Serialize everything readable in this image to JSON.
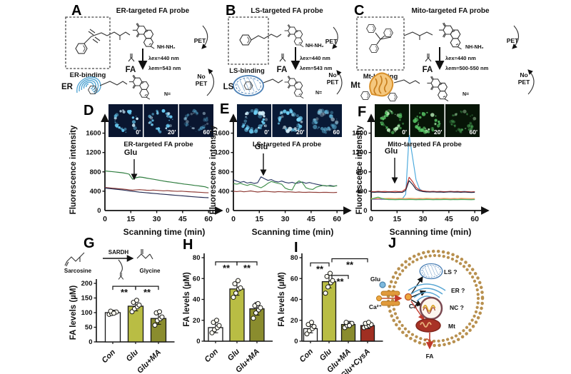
{
  "panels": {
    "A": {
      "label": "A",
      "title": "ER-targeted FA probe",
      "binding": "ER-binding",
      "organelle": "ER",
      "fa": "FA",
      "ex": "λex=440 nm",
      "em": "λem=543 nm",
      "pet": "PET",
      "no": "No",
      "pet2": "PET",
      "hydrazine": "NH-NH₂",
      "hydrazone": "N="
    },
    "B": {
      "label": "B",
      "title": "LS-targeted FA probe",
      "binding": "LS-binding",
      "organelle": "LS",
      "fa": "FA",
      "ex": "λex=440 nm",
      "em": "λem=543 nm",
      "pet": "PET",
      "no": "No",
      "pet2": "PET",
      "hydrazine": "NH-NH₂",
      "hydrazone": "N="
    },
    "C": {
      "label": "C",
      "title": "Mito-targeted FA probe",
      "binding": "Mt-binding",
      "organelle": "Mt",
      "fa": "FA",
      "ex": "λex=440 nm",
      "em": "λem=500-550 nm",
      "pet": "PET",
      "no": "No",
      "pet2": "PET",
      "hydrazine": "NH-NH₂",
      "hydrazone": "N="
    },
    "D": {
      "label": "D"
    },
    "E": {
      "label": "E"
    },
    "F": {
      "label": "F"
    },
    "G": {
      "label": "G",
      "scheme": {
        "substrate": "Sarcosine",
        "enzyme": "SARDH",
        "product": "Glycine"
      }
    },
    "H": {
      "label": "H"
    },
    "I": {
      "label": "I"
    },
    "J": {
      "label": "J",
      "glu": "Glu",
      "ca_out": "Ca²⁺",
      "ca_in": "Ca²⁺",
      "organelles": {
        "ls": "LS ?",
        "er": "ER ?",
        "nc": "NC ?",
        "mt": "Mt"
      },
      "fa": "FA"
    }
  },
  "chart_data": [
    {
      "id": "D",
      "type": "line",
      "title": "ER-targeted FA probe",
      "glu_label": "Glu",
      "glu_time": 17,
      "timepoints": [
        "0'",
        "20'",
        "60'"
      ],
      "xlabel": "Scanning time (min)",
      "ylabel": "Fluorescence intensity",
      "xlim": [
        0,
        62
      ],
      "ylim": [
        0,
        1800
      ],
      "yticks": [
        0,
        400,
        800,
        1200,
        1600
      ],
      "xticks": [
        0,
        15,
        30,
        45,
        60
      ],
      "series": [
        {
          "name": "green",
          "color": "#2f7d3f",
          "dx": 2,
          "y": [
            820,
            812,
            805,
            798,
            790,
            782,
            770,
            752,
            648,
            678,
            694,
            686,
            672,
            660,
            648,
            636,
            622,
            610,
            598,
            588,
            578,
            568,
            558,
            548,
            540,
            530,
            520,
            512,
            502,
            492,
            466
          ]
        },
        {
          "name": "dark-red",
          "color": "#8e3a34",
          "dx": 2,
          "y": [
            478,
            470,
            464,
            458,
            452,
            446,
            438,
            430,
            420,
            427,
            433,
            427,
            421,
            417,
            423,
            417,
            411,
            407,
            411,
            405,
            401,
            397,
            401,
            395,
            391,
            387,
            383,
            379,
            375,
            371,
            367
          ]
        },
        {
          "name": "navy",
          "color": "#232a52",
          "dx": 2,
          "y": [
            466,
            457,
            449,
            443,
            435,
            427,
            417,
            407,
            397,
            389,
            381,
            375,
            367,
            361,
            355,
            349,
            343,
            337,
            331,
            325,
            319,
            313,
            307,
            301,
            295,
            289,
            283,
            277,
            273,
            269,
            265
          ]
        }
      ]
    },
    {
      "id": "E",
      "type": "line",
      "title": "LS-targeted FA probe",
      "glu_label": "Glu",
      "glu_time": 17,
      "timepoints": [
        "0'",
        "20'",
        "60"
      ],
      "xlabel": "Scanning time (min)",
      "ylabel": "Fluorescence intensity",
      "xlim": [
        0,
        62
      ],
      "ylim": [
        0,
        1800
      ],
      "yticks": [
        0,
        400,
        800,
        1200,
        1600
      ],
      "xticks": [
        0,
        15,
        30,
        45,
        60
      ],
      "series": [
        {
          "name": "navy",
          "color": "#2c3a66",
          "dx": 2,
          "y": [
            638,
            608,
            584,
            600,
            568,
            584,
            560,
            574,
            698,
            658,
            624,
            640,
            604,
            590,
            610,
            584,
            570,
            584,
            560,
            574,
            590,
            564,
            580,
            560,
            544,
            530,
            516,
            506,
            520,
            506,
            514
          ]
        },
        {
          "name": "green",
          "color": "#3f8f4a",
          "dx": 2,
          "y": [
            558,
            544,
            564,
            538,
            520,
            544,
            524,
            494,
            470,
            510,
            564,
            600,
            580,
            560,
            544,
            464,
            436,
            426,
            560,
            614,
            574,
            470,
            446,
            436,
            484,
            504,
            520,
            512,
            504,
            498,
            518
          ]
        },
        {
          "name": "dark-red",
          "color": "#8e3a34",
          "dx": 2,
          "y": [
            398,
            392,
            402,
            388,
            396,
            406,
            394,
            384,
            390,
            398,
            394,
            388,
            384,
            392,
            388,
            384,
            388,
            384,
            378,
            384,
            378,
            376,
            380,
            378,
            376,
            374,
            378,
            376,
            374,
            372,
            376
          ]
        }
      ]
    },
    {
      "id": "F",
      "type": "line",
      "title": "Mito-targeted FA probe",
      "glu_label": "Glu",
      "glu_time": 13,
      "timepoints": [
        "0'",
        "20'",
        "60'"
      ],
      "xlabel": "Scanning time (min)",
      "ylabel": "Fluorescence intensity",
      "xlim": [
        0,
        62
      ],
      "ylim": [
        0,
        1800
      ],
      "yticks": [
        0,
        400,
        800,
        1200,
        1600
      ],
      "xticks": [
        0,
        15,
        30,
        45,
        60
      ],
      "series": [
        {
          "name": "sky-blue",
          "color": "#49a8dc",
          "dx": 2,
          "y": [
            234,
            230,
            235,
            229,
            233,
            229,
            227,
            231,
            229,
            238,
            336,
            1558,
            1096,
            638,
            448,
            398,
            384,
            389,
            393,
            384,
            389,
            393,
            384,
            389,
            393,
            387,
            391,
            395,
            389,
            385,
            389
          ]
        },
        {
          "name": "red",
          "color": "#c2392f",
          "dx": 2,
          "y": [
            394,
            389,
            397,
            391,
            395,
            389,
            393,
            397,
            391,
            395,
            448,
            688,
            598,
            478,
            428,
            408,
            398,
            394,
            397,
            391,
            395,
            389,
            393,
            397,
            391,
            395,
            389,
            393,
            389,
            385,
            389
          ]
        },
        {
          "name": "dark-navy",
          "color": "#1d2442",
          "dx": 2,
          "y": [
            381,
            377,
            383,
            379,
            375,
            381,
            377,
            373,
            379,
            375,
            418,
            618,
            538,
            438,
            408,
            393,
            386,
            382,
            386,
            380,
            384,
            378,
            382,
            386,
            380,
            384,
            378,
            382,
            378,
            374,
            378
          ]
        },
        {
          "name": "orange",
          "color": "#f2a93b",
          "dx": 2,
          "y": [
            251,
            249,
            252,
            250,
            248,
            251,
            249,
            247,
            250,
            249,
            248,
            251,
            249,
            247,
            250,
            248,
            251,
            249,
            247,
            250,
            248,
            251,
            249,
            247,
            250,
            248,
            251,
            249,
            248,
            247,
            249
          ]
        },
        {
          "name": "purple",
          "color": "#b06ab0",
          "dx": 2,
          "y": [
            235,
            233,
            236,
            234,
            232,
            235,
            233,
            231,
            234,
            233,
            232,
            235,
            233,
            231,
            234,
            232,
            235,
            233,
            231,
            234,
            232,
            235,
            233,
            231,
            234,
            232,
            235,
            233,
            232,
            231,
            233
          ]
        },
        {
          "name": "green",
          "color": "#43b05c",
          "dx": 2,
          "y": [
            231,
            259,
            277,
            254,
            237,
            229,
            227,
            225,
            228,
            227,
            226,
            228,
            227,
            225,
            227,
            226,
            228,
            227,
            225,
            227,
            226,
            228,
            227,
            225,
            227,
            226,
            228,
            227,
            226,
            225,
            227
          ]
        }
      ]
    },
    {
      "id": "G",
      "type": "bar",
      "ylabel": "FA levels (µM)",
      "ylim": [
        0,
        200
      ],
      "yticks": [
        0,
        50,
        100,
        150,
        200
      ],
      "categories": [
        "Con",
        "Glu",
        "Glu+MA"
      ],
      "values": [
        100,
        122,
        80
      ],
      "errors": [
        8,
        16,
        20
      ],
      "bar_colors": [
        "#ffffff",
        "#b9bd44",
        "#8a8c2e"
      ],
      "points": [
        [
          94,
          97,
          100,
          102,
          105,
          98
        ],
        [
          103,
          113,
          120,
          126,
          135,
          142
        ],
        [
          57,
          73,
          79,
          85,
          99,
          103
        ]
      ],
      "sig": [
        {
          "a": 0,
          "b": 1,
          "y": 190,
          "label": "**"
        },
        {
          "a": 1,
          "b": 2,
          "y": 190,
          "label": "**"
        }
      ]
    },
    {
      "id": "H",
      "type": "bar",
      "ylabel": "FA levels (µM)",
      "ylim": [
        0,
        80
      ],
      "yticks": [
        0,
        20,
        40,
        60,
        80
      ],
      "categories": [
        "Con",
        "Glu",
        "Glu+MA"
      ],
      "values": [
        13,
        50,
        31
      ],
      "errors": [
        5,
        6,
        6
      ],
      "bar_colors": [
        "#ffffff",
        "#b9bd44",
        "#8a8c2e"
      ],
      "points": [
        [
          8,
          11,
          13,
          15,
          18,
          20
        ],
        [
          42,
          46,
          50,
          51,
          55,
          58
        ],
        [
          22,
          27,
          30,
          32,
          34,
          36
        ]
      ],
      "sig": [
        {
          "a": 0,
          "b": 1,
          "y": 76,
          "label": "**"
        },
        {
          "a": 1,
          "b": 2,
          "y": 76,
          "label": "**"
        }
      ]
    },
    {
      "id": "I",
      "type": "bar",
      "ylabel": "FA levels (µM)",
      "ylim": [
        0,
        80
      ],
      "yticks": [
        0,
        20,
        40,
        60,
        80
      ],
      "categories": [
        "Con",
        "Glu",
        "Glu+MA",
        "Glu+CysA"
      ],
      "values": [
        12,
        57,
        16,
        15
      ],
      "errors": [
        4,
        6,
        3,
        3
      ],
      "bar_colors": [
        "#ffffff",
        "#b9bd44",
        "#8a8c2e",
        "#a02f22"
      ],
      "points": [
        [
          7,
          10,
          12,
          14,
          16,
          18
        ],
        [
          46,
          52,
          56,
          58,
          62,
          65
        ],
        [
          13,
          15,
          16,
          17,
          18,
          15
        ],
        [
          13,
          14,
          15,
          16,
          17,
          18
        ]
      ],
      "sig": [
        {
          "a": 0,
          "b": 1,
          "y": 75,
          "label": "**"
        },
        {
          "a": 1,
          "b": 2,
          "y": 63,
          "label": "**",
          "ao": 4
        },
        {
          "a": 1,
          "b": 3,
          "y": 79,
          "label": "**",
          "ao": 4
        }
      ]
    }
  ]
}
